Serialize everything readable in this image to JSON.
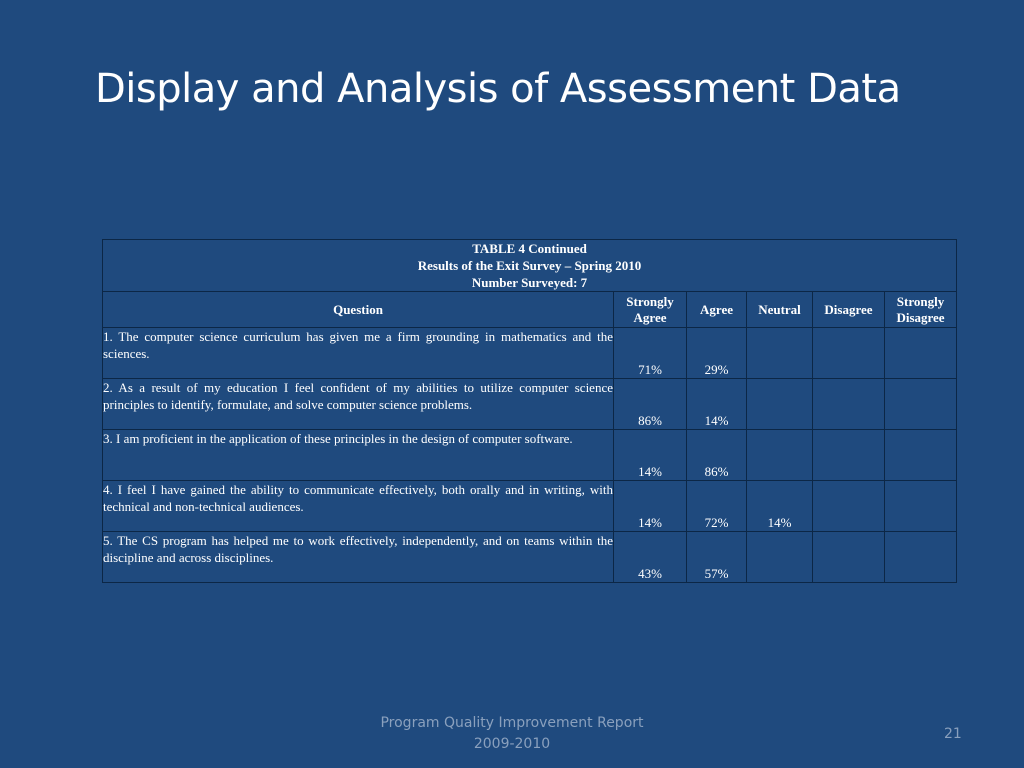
{
  "slide": {
    "title": "Display and Analysis of Assessment Data",
    "footer_line1": "Program Quality Improvement Report",
    "footer_line2": "2009-2010",
    "page_number": "21"
  },
  "table": {
    "caption_line1": "TABLE 4 Continued",
    "caption_line2": "Results of the Exit Survey – Spring 2010",
    "caption_line3": "Number Surveyed: 7",
    "headers": [
      "Question",
      "Strongly Agree",
      "Agree",
      "Neutral",
      "Disagree",
      "Strongly Disagree"
    ],
    "rows": [
      {
        "question": "1. The computer science curriculum has given me a firm grounding in mathematics and the sciences.",
        "strongly_agree": "71%",
        "agree": "29%",
        "neutral": "",
        "disagree": "",
        "strongly_disagree": ""
      },
      {
        "question": "2. As a result of my education I feel confident of my abilities to utilize computer science principles to identify, formulate, and solve computer science problems.",
        "strongly_agree": "86%",
        "agree": "14%",
        "neutral": "",
        "disagree": "",
        "strongly_disagree": ""
      },
      {
        "question": "3. I am proficient in the application of these principles in the design of computer software.",
        "strongly_agree": "14%",
        "agree": "86%",
        "neutral": "",
        "disagree": "",
        "strongly_disagree": ""
      },
      {
        "question": "4. I feel I have gained the ability to communicate effectively, both orally and in writing, with technical and non-technical audiences.",
        "strongly_agree": "14%",
        "agree": "72%",
        "neutral": "14%",
        "disagree": "",
        "strongly_disagree": ""
      },
      {
        "question": "5. The CS program has helped me to work effectively, independently, and on teams within the discipline and across disciplines.",
        "strongly_agree": "43%",
        "agree": "57%",
        "neutral": "",
        "disagree": "",
        "strongly_disagree": ""
      }
    ]
  }
}
